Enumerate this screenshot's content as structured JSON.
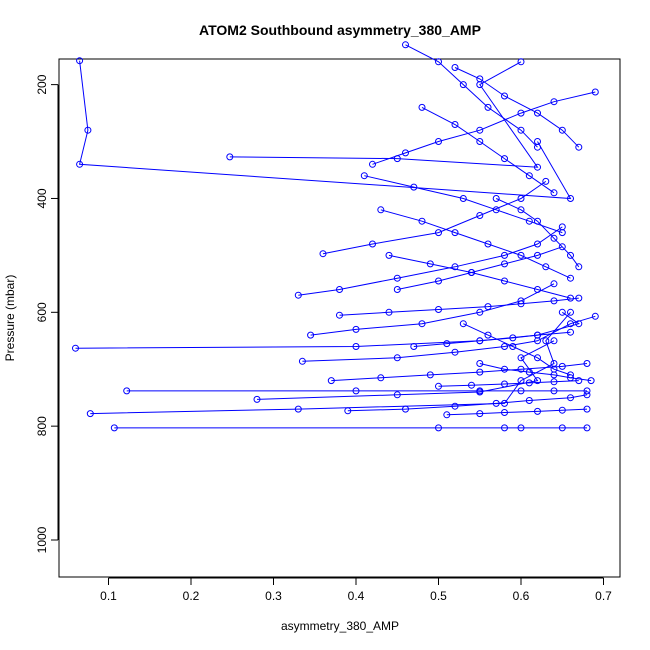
{
  "chart_data": {
    "type": "scatter",
    "title": "ATOM2 Southbound asymmetry_380_AMP",
    "xlabel": "asymmetry_380_AMP",
    "ylabel": "Pressure (mbar)",
    "xlim": [
      0.04,
      0.72
    ],
    "ylim": [
      1065,
      155
    ],
    "y_reversed": true,
    "x_ticks": [
      0.1,
      0.2,
      0.3,
      0.4,
      0.5,
      0.6,
      0.7
    ],
    "x_tick_labels": [
      "0.1",
      "0.2",
      "0.3",
      "0.4",
      "0.5",
      "0.6",
      "0.7"
    ],
    "y_ticks": [
      200,
      400,
      600,
      800,
      1000
    ],
    "y_tick_labels": [
      "200",
      "400",
      "600",
      "800",
      "1000"
    ],
    "grid": false,
    "series_color": "#0000ff",
    "marker": "open-circle",
    "connected": true,
    "profiles": [
      {
        "x": [
          0.065,
          0.075,
          0.065,
          0.66,
          0.62
        ],
        "y": [
          158,
          280,
          340,
          400,
          300
        ]
      },
      {
        "x": [
          0.247,
          0.45,
          0.62,
          0.55,
          0.6
        ],
        "y": [
          327,
          330,
          345,
          200,
          160
        ]
      },
      {
        "x": [
          0.06,
          0.4,
          0.55,
          0.62,
          0.67,
          0.65
        ],
        "y": [
          663,
          660,
          650,
          640,
          620,
          600
        ]
      },
      {
        "x": [
          0.078,
          0.33,
          0.58,
          0.6,
          0.64,
          0.63,
          0.66
        ],
        "y": [
          778,
          770,
          760,
          720,
          690,
          650,
          600
        ]
      },
      {
        "x": [
          0.107,
          0.5,
          0.58,
          0.6,
          0.65,
          0.68
        ],
        "y": [
          803,
          803,
          803,
          803,
          803,
          803
        ]
      },
      {
        "x": [
          0.122,
          0.4,
          0.55,
          0.6,
          0.64,
          0.68
        ],
        "y": [
          738,
          738,
          738,
          738,
          738,
          738
        ]
      },
      {
        "x": [
          0.28,
          0.45,
          0.55,
          0.62,
          0.6,
          0.64
        ],
        "y": [
          753,
          745,
          740,
          720,
          680,
          650
        ]
      },
      {
        "x": [
          0.33,
          0.38,
          0.45,
          0.52,
          0.58,
          0.62,
          0.65
        ],
        "y": [
          570,
          560,
          540,
          520,
          500,
          480,
          450
        ]
      },
      {
        "x": [
          0.36,
          0.42,
          0.5,
          0.55,
          0.6,
          0.63
        ],
        "y": [
          497,
          480,
          460,
          430,
          400,
          370
        ]
      },
      {
        "x": [
          0.335,
          0.45,
          0.52,
          0.58,
          0.62,
          0.66,
          0.69
        ],
        "y": [
          686,
          680,
          670,
          660,
          650,
          620,
          607
        ]
      },
      {
        "x": [
          0.345,
          0.4,
          0.48,
          0.55,
          0.6,
          0.64
        ],
        "y": [
          640,
          630,
          620,
          600,
          580,
          550
        ]
      },
      {
        "x": [
          0.42,
          0.46,
          0.5,
          0.55,
          0.6,
          0.64,
          0.69
        ],
        "y": [
          340,
          320,
          300,
          280,
          250,
          230,
          213
        ]
      },
      {
        "x": [
          0.46,
          0.5,
          0.53,
          0.56,
          0.6,
          0.62
        ],
        "y": [
          130,
          160,
          200,
          240,
          280,
          310
        ]
      },
      {
        "x": [
          0.52,
          0.55,
          0.58,
          0.62,
          0.65,
          0.67
        ],
        "y": [
          170,
          190,
          220,
          250,
          280,
          310
        ]
      },
      {
        "x": [
          0.43,
          0.48,
          0.52,
          0.56,
          0.6,
          0.63,
          0.66
        ],
        "y": [
          420,
          440,
          460,
          480,
          500,
          520,
          540
        ]
      },
      {
        "x": [
          0.38,
          0.44,
          0.5,
          0.56,
          0.6,
          0.64,
          0.67
        ],
        "y": [
          605,
          600,
          595,
          590,
          585,
          580,
          575
        ]
      },
      {
        "x": [
          0.41,
          0.47,
          0.53,
          0.57,
          0.61,
          0.65
        ],
        "y": [
          360,
          380,
          400,
          420,
          440,
          460
        ]
      },
      {
        "x": [
          0.44,
          0.49,
          0.54,
          0.58,
          0.62,
          0.66
        ],
        "y": [
          500,
          515,
          530,
          545,
          560,
          575
        ]
      },
      {
        "x": [
          0.37,
          0.43,
          0.49,
          0.55,
          0.6,
          0.65,
          0.68
        ],
        "y": [
          720,
          715,
          710,
          705,
          700,
          695,
          690
        ]
      },
      {
        "x": [
          0.39,
          0.46,
          0.52,
          0.57,
          0.61,
          0.66,
          0.68
        ],
        "y": [
          773,
          770,
          765,
          760,
          755,
          750,
          745
        ]
      },
      {
        "x": [
          0.51,
          0.55,
          0.58,
          0.62,
          0.65,
          0.68
        ],
        "y": [
          780,
          778,
          776,
          774,
          772,
          770
        ]
      },
      {
        "x": [
          0.55,
          0.58,
          0.61,
          0.64,
          0.66,
          0.685
        ],
        "y": [
          690,
          700,
          705,
          710,
          715,
          720
        ]
      },
      {
        "x": [
          0.48,
          0.52,
          0.55,
          0.58,
          0.61,
          0.64
        ],
        "y": [
          240,
          270,
          300,
          330,
          360,
          390
        ]
      },
      {
        "x": [
          0.45,
          0.5,
          0.54,
          0.58,
          0.62,
          0.65
        ],
        "y": [
          560,
          545,
          530,
          515,
          500,
          485
        ]
      },
      {
        "x": [
          0.53,
          0.56,
          0.59,
          0.62,
          0.64,
          0.66
        ],
        "y": [
          620,
          640,
          660,
          680,
          700,
          710
        ]
      },
      {
        "x": [
          0.57,
          0.6,
          0.62,
          0.64,
          0.66,
          0.67
        ],
        "y": [
          400,
          420,
          440,
          470,
          500,
          520
        ]
      },
      {
        "x": [
          0.5,
          0.54,
          0.58,
          0.61,
          0.64,
          0.67
        ],
        "y": [
          730,
          728,
          726,
          724,
          722,
          720
        ]
      },
      {
        "x": [
          0.47,
          0.51,
          0.55,
          0.59,
          0.62,
          0.66
        ],
        "y": [
          660,
          655,
          650,
          645,
          640,
          635
        ]
      }
    ]
  }
}
